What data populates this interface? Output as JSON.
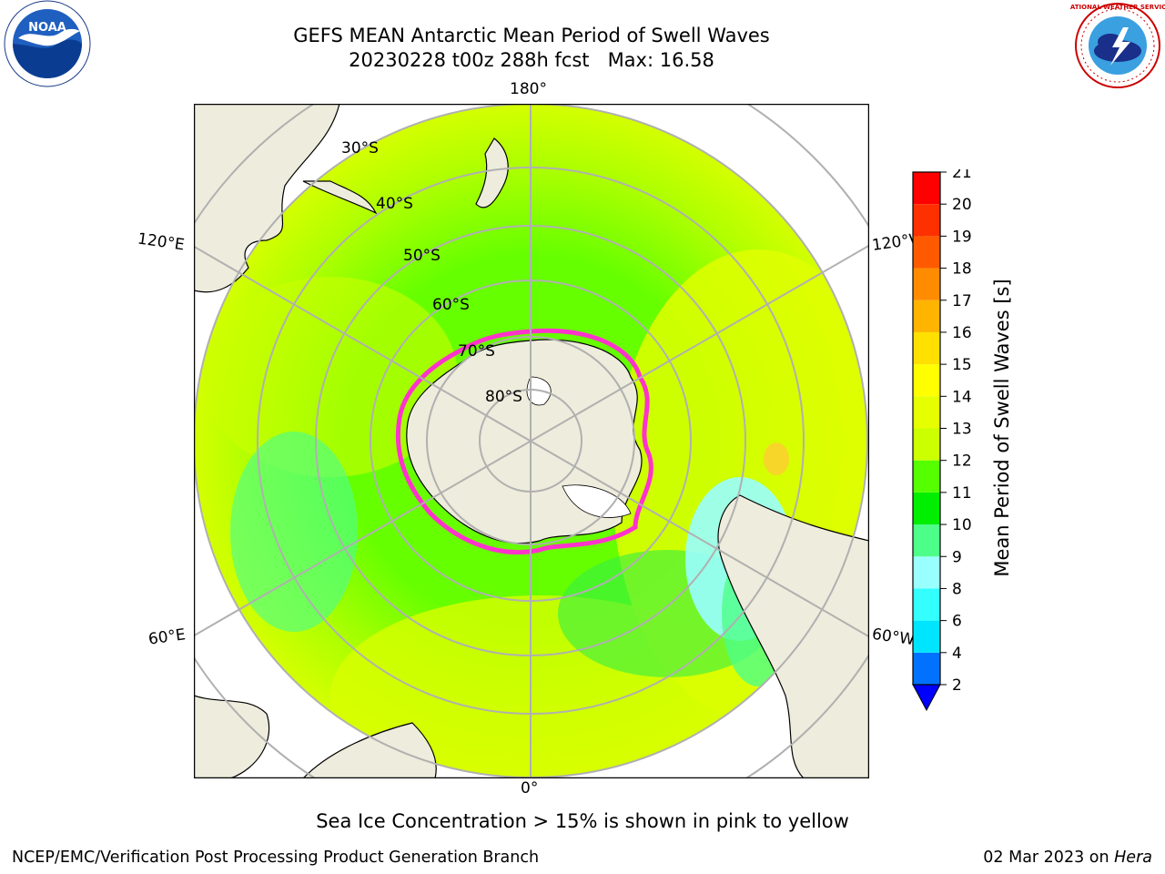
{
  "title": {
    "line1": "GEFS MEAN Antarctic Mean Period of Swell Waves",
    "line2": "20230228 t00z 288h fcst   Max: 16.58"
  },
  "map": {
    "projection": "south-polar-stereographic",
    "lon_labels": {
      "top": "180°",
      "bottom": "0°",
      "left_upper": "120°E",
      "left_lower": "60°E",
      "right_upper": "120°W",
      "right_lower": "60°W"
    },
    "lat_labels": [
      "30°S",
      "40°S",
      "50°S",
      "60°S",
      "70°S",
      "80°S"
    ],
    "colors": {
      "land": "#eeecdc",
      "grid": "#b0b0b0",
      "sea_ice_edge": "#ff33cc",
      "ice_shelf": "#ffffff"
    }
  },
  "colorbar": {
    "label": "Mean Period of Swell Waves [s]",
    "ticks": [
      "2",
      "4",
      "6",
      "8",
      "9",
      "10",
      "11",
      "12",
      "13",
      "14",
      "15",
      "16",
      "17",
      "18",
      "19",
      "20",
      "21"
    ],
    "colors": [
      "#0072ff",
      "#00e5ff",
      "#33ffff",
      "#99ffff",
      "#4dff88",
      "#00ee00",
      "#55ff00",
      "#ccff00",
      "#e5ff00",
      "#ffff00",
      "#ffe000",
      "#ffb400",
      "#ff8c00",
      "#ff5a00",
      "#ff3000",
      "#ff0000"
    ],
    "under_color": "#0000ff"
  },
  "note": "Sea Ice Concentration > 15% is shown in pink to yellow",
  "footer": {
    "left": "NCEP/EMC/Verification Post Processing Product Generation Branch",
    "date": "02 Mar 2023 on ",
    "machine": "Hera"
  },
  "logos": {
    "noaa": {
      "text": "NOAA",
      "icon": "noaa-seagull-logo"
    },
    "nws": {
      "text": "NATIONAL WEATHER SERVICE",
      "icon": "nws-lightning-logo"
    }
  }
}
